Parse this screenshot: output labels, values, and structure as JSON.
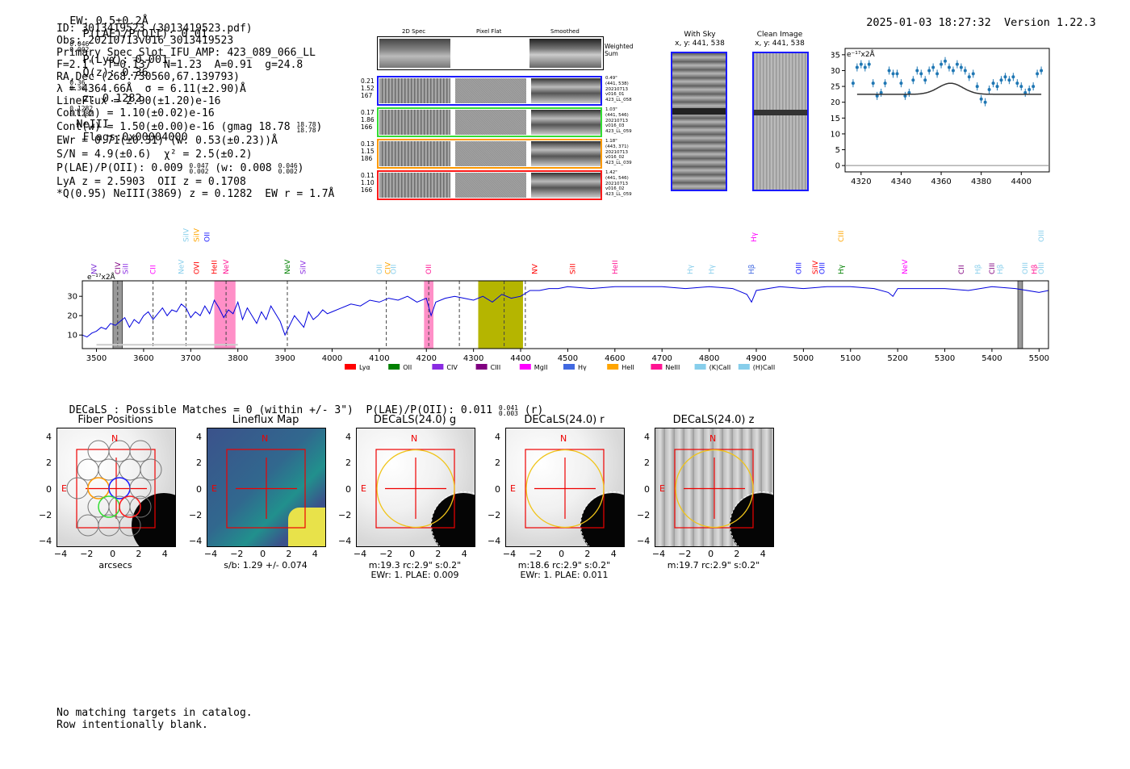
{
  "header": {
    "ew": "EW: 0.5±0.2Å",
    "plae_label": "P(LAE)/P(OII): 0.01",
    "plae_hi": "0.046",
    "plae_lo": "0.002",
    "plya": "P(Lyα): 0.001",
    "qz_label": "Q(z): 0.36",
    "qz_hi": "0.36",
    "qz_lo": "0.36",
    "z_label": "z: 0.1282",
    "z_hi": "0.1282",
    "z_lo": "0.1282",
    "line": "NeIII",
    "flags": "Flags:0x00004000",
    "datetime": "2025-01-03 18:27:32",
    "version": "Version 1.22.3"
  },
  "info": {
    "lines": [
      "ID: 3013419523 (3013419523.pdf)",
      "Obs: 20210713v016_3013419523",
      "Primary Spec_Slot_IFU_AMP: 423_089_066_LL",
      "F=2.1\"  T=0.137  N=1.23  A=0.91  g=24.8",
      "RA,Dec (268.730560,67.139793)",
      "λ = 4364.66Å  σ = 6.11(±2.90)Å",
      "LineFlux = 2.90(±1.20)e-16",
      "Cont(n) = 1.10(±0.02)e-16"
    ],
    "contw": "Cont(w) = 1.50(±0.00)e-16 (gmag 18.78",
    "contw_hi": "18.78",
    "contw_lo": "18.78",
    "ewr": "EWr = 0.71(±0.31) (w: 0.53(±0.23))Å",
    "sn": "S/N = 4.9(±0.6)  χ² = 2.5(±0.2)",
    "plae": "P(LAE)/P(OII): 0.009",
    "plae_hi": "0.047",
    "plae_lo": "0.002",
    "plae_w": "(w: 0.008",
    "plae_w_hi": "0.046",
    "plae_w_lo": "0.002",
    "lya": "LyA z = 2.5903  OII z = 0.1708",
    "q": "*Q(0.95) NeIII(3869) z = 0.1282  EW r = 1.7Å"
  },
  "cutouts": {
    "col_titles": [
      "2D Spec",
      "Pixel Flat",
      "Smoothed"
    ],
    "weighted_sum": "Weighted Sum",
    "rows": [
      {
        "left": [
          "0.21",
          "1.52",
          "167"
        ],
        "right": [
          "0.49\"",
          "(441, 538)",
          "20210713",
          "v016_01",
          "423_LL_058"
        ],
        "color": "#1a1aff"
      },
      {
        "left": [
          "0.17",
          "1.86",
          "166"
        ],
        "right": [
          "1.03\"",
          "(441, 546)",
          "20210713",
          "v016_03",
          "423_LL_059"
        ],
        "color": "#33dd33"
      },
      {
        "left": [
          "0.13",
          "1.15",
          "186"
        ],
        "right": [
          "1.18\"",
          "(443, 371)",
          "20210713",
          "v016_02",
          "423_LL_039"
        ],
        "color": "#ff9900"
      },
      {
        "left": [
          "0.11",
          "1.10",
          "166"
        ],
        "right": [
          "1.42\"",
          "(441, 546)",
          "20210713",
          "v016_02",
          "423_LL_059"
        ],
        "color": "#ff1a1a"
      }
    ]
  },
  "sky_panels": {
    "with_sky_title": "With Sky",
    "with_sky_xy": "x, y: 441, 538",
    "clean_title": "Clean Image",
    "clean_xy": "x, y: 441, 538"
  },
  "chart_data": [
    {
      "type": "scatter",
      "title": "",
      "unit_label": "e⁻¹⁷x2Å",
      "xlim": [
        4312,
        4414
      ],
      "ylim": [
        -2,
        37
      ],
      "xticks": [
        4320,
        4340,
        4360,
        4380,
        4400
      ],
      "yticks": [
        0,
        5,
        10,
        15,
        20,
        25,
        30,
        35
      ],
      "x": [
        4316,
        4318,
        4320,
        4322,
        4324,
        4326,
        4328,
        4330,
        4332,
        4334,
        4336,
        4338,
        4340,
        4342,
        4344,
        4346,
        4348,
        4350,
        4352,
        4354,
        4356,
        4358,
        4360,
        4362,
        4364,
        4366,
        4368,
        4370,
        4372,
        4374,
        4376,
        4378,
        4380,
        4382,
        4384,
        4386,
        4388,
        4390,
        4392,
        4394,
        4396,
        4398,
        4400,
        4402,
        4404,
        4406,
        4408,
        4410
      ],
      "values": [
        26,
        31,
        32,
        31,
        32,
        26,
        22,
        23,
        26,
        30,
        29,
        29,
        26,
        22,
        23,
        27,
        30,
        29,
        27,
        30,
        31,
        29,
        32,
        33,
        31,
        30,
        32,
        31,
        30,
        28,
        29,
        25,
        21,
        20,
        24,
        26,
        25,
        27,
        28,
        27,
        28,
        26,
        25,
        23,
        24,
        25,
        29,
        30
      ],
      "fit": {
        "continuum": 22.5,
        "amplitude": 3.5,
        "center": 4364.66,
        "sigma": 6.11
      }
    },
    {
      "type": "line",
      "title": "",
      "unit_label": "e⁻¹⁷x2Å",
      "xlim": [
        3470,
        5520
      ],
      "ylim": [
        3,
        38
      ],
      "xticks": [
        3500,
        3600,
        3700,
        3800,
        3900,
        4000,
        4100,
        4200,
        4300,
        4400,
        4500,
        4600,
        4700,
        4800,
        4900,
        5000,
        5100,
        5200,
        5300,
        5400,
        5500
      ],
      "yticks": [
        10,
        20,
        30
      ],
      "series": [
        {
          "name": "spectrum",
          "x": [
            3470,
            3480,
            3490,
            3500,
            3510,
            3520,
            3530,
            3540,
            3550,
            3560,
            3570,
            3580,
            3590,
            3600,
            3610,
            3620,
            3630,
            3640,
            3650,
            3660,
            3670,
            3680,
            3690,
            3700,
            3710,
            3720,
            3730,
            3740,
            3750,
            3760,
            3770,
            3780,
            3790,
            3800,
            3810,
            3820,
            3830,
            3840,
            3850,
            3860,
            3870,
            3880,
            3890,
            3900,
            3910,
            3920,
            3930,
            3940,
            3950,
            3960,
            3970,
            3980,
            3990,
            4000,
            4020,
            4040,
            4060,
            4080,
            4100,
            4120,
            4140,
            4160,
            4180,
            4200,
            4210,
            4220,
            4240,
            4260,
            4280,
            4300,
            4320,
            4340,
            4360,
            4380,
            4400,
            4420,
            4440,
            4460,
            4480,
            4500,
            4550,
            4600,
            4650,
            4700,
            4750,
            4800,
            4850,
            4880,
            4890,
            4900,
            4950,
            5000,
            5050,
            5100,
            5150,
            5180,
            5190,
            5200,
            5250,
            5300,
            5350,
            5400,
            5450,
            5500,
            5520
          ],
          "values": [
            10,
            9,
            11,
            12,
            14,
            13,
            16,
            15,
            17,
            19,
            14,
            18,
            16,
            20,
            22,
            18,
            21,
            24,
            20,
            23,
            22,
            26,
            24,
            19,
            22,
            20,
            25,
            21,
            28,
            24,
            19,
            23,
            21,
            27,
            18,
            24,
            20,
            16,
            22,
            18,
            25,
            21,
            17,
            10,
            15,
            20,
            17,
            14,
            22,
            18,
            20,
            23,
            21,
            22,
            24,
            26,
            25,
            28,
            27,
            29,
            28,
            30,
            27,
            29,
            20,
            27,
            29,
            30,
            29,
            28,
            30,
            27,
            31,
            29,
            30,
            33,
            33,
            34,
            34,
            35,
            34,
            35,
            35,
            35,
            34,
            35,
            34,
            31,
            27,
            33,
            35,
            34,
            35,
            35,
            34,
            32,
            30,
            34,
            34,
            34,
            33,
            35,
            34,
            32,
            33
          ]
        },
        {
          "name": "noise",
          "x": [
            3500,
            3600,
            3700,
            3800
          ],
          "values": [
            5,
            5,
            5,
            5
          ]
        }
      ],
      "masked_regions": [
        [
          3535,
          3555
        ],
        [
          4310,
          4405
        ],
        [
          5455,
          5465
        ]
      ],
      "highlight_regions": [
        [
          3750,
          3795
        ],
        [
          4195,
          4215
        ]
      ],
      "dashed_lines": [
        3545,
        3620,
        3690,
        3775,
        3905,
        4115,
        4205,
        4270,
        4365,
        4410
      ],
      "line_labels": [
        {
          "label": "NV",
          "wave": 3495,
          "color": "#7b2dd4",
          "tier": 0
        },
        {
          "label": "CIV",
          "wave": 3545,
          "color": "#800080",
          "tier": 0
        },
        {
          "label": "SiII",
          "wave": 3562,
          "color": "#8a2be2",
          "tier": 0
        },
        {
          "label": "SiIV",
          "wave": 3690,
          "color": "#87ceeb",
          "tier": 2
        },
        {
          "label": "SiIV",
          "wave": 3712,
          "color": "#ffa500",
          "tier": 2
        },
        {
          "label": "OII",
          "wave": 3735,
          "color": "#1a1aff",
          "tier": 2
        },
        {
          "label": "CII",
          "wave": 3620,
          "color": "#ff00ff",
          "tier": 0
        },
        {
          "label": "NeV",
          "wave": 3680,
          "color": "#87ceeb",
          "tier": 0
        },
        {
          "label": "OVI",
          "wave": 3712,
          "color": "#ff0000",
          "tier": 0
        },
        {
          "label": "HeII",
          "wave": 3750,
          "color": "#ff0000",
          "tier": 0
        },
        {
          "label": "NeV",
          "wave": 3775,
          "color": "#ff1493",
          "tier": 0
        },
        {
          "label": "NeV",
          "wave": 3905,
          "color": "#008000",
          "tier": 0
        },
        {
          "label": "SiIV",
          "wave": 3938,
          "color": "#8a2be2",
          "tier": 0
        },
        {
          "label": "OII",
          "wave": 4100,
          "color": "#87ceeb",
          "tier": 0
        },
        {
          "label": "CIV",
          "wave": 4118,
          "color": "#ffa500",
          "tier": 0
        },
        {
          "label": "OII",
          "wave": 4130,
          "color": "#87ceeb",
          "tier": 0
        },
        {
          "label": "OII",
          "wave": 4205,
          "color": "#ff1493",
          "tier": 0
        },
        {
          "label": "NV",
          "wave": 4430,
          "color": "#ff0000",
          "tier": 0
        },
        {
          "label": "SiII",
          "wave": 4510,
          "color": "#ff0000",
          "tier": 0
        },
        {
          "label": "HeII",
          "wave": 4600,
          "color": "#ff1493",
          "tier": 0
        },
        {
          "label": "Hγ",
          "wave": 4760,
          "color": "#87ceeb",
          "tier": 0
        },
        {
          "label": "Hγ",
          "wave": 4805,
          "color": "#87ceeb",
          "tier": 0
        },
        {
          "label": "Hβ",
          "wave": 4890,
          "color": "#4169e1",
          "tier": 0
        },
        {
          "label": "Hγ",
          "wave": 4895,
          "color": "#ff00ff",
          "tier": 2
        },
        {
          "label": "OIII",
          "wave": 4990,
          "color": "#1a1aff",
          "tier": 0
        },
        {
          "label": "SiIV",
          "wave": 5025,
          "color": "#ff0000",
          "tier": 0
        },
        {
          "label": "OIII",
          "wave": 5040,
          "color": "#1a1aff",
          "tier": 0
        },
        {
          "label": "CIII",
          "wave": 5080,
          "color": "#ffa500",
          "tier": 2
        },
        {
          "label": "Hγ",
          "wave": 5080,
          "color": "#008000",
          "tier": 0
        },
        {
          "label": "NeV",
          "wave": 5215,
          "color": "#ff00ff",
          "tier": 0
        },
        {
          "label": "CII",
          "wave": 5335,
          "color": "#800080",
          "tier": 0
        },
        {
          "label": "Hβ",
          "wave": 5370,
          "color": "#87ceeb",
          "tier": 0
        },
        {
          "label": "CIII",
          "wave": 5400,
          "color": "#800080",
          "tier": 0
        },
        {
          "label": "Hβ",
          "wave": 5417,
          "color": "#87ceeb",
          "tier": 0
        },
        {
          "label": "OIII",
          "wave": 5470,
          "color": "#87ceeb",
          "tier": 0
        },
        {
          "label": "Hβ",
          "wave": 5490,
          "color": "#ff1493",
          "tier": 0
        },
        {
          "label": "OIII",
          "wave": 5505,
          "color": "#87ceeb",
          "tier": 0
        },
        {
          "label": "OIII",
          "wave": 5505,
          "color": "#87ceeb",
          "tier": 2
        }
      ],
      "legend": [
        {
          "label": "Lyα",
          "color": "#ff0000"
        },
        {
          "label": "OII",
          "color": "#008000"
        },
        {
          "label": "CIV",
          "color": "#8a2be2"
        },
        {
          "label": "CIII",
          "color": "#800080"
        },
        {
          "label": "MgII",
          "color": "#ff00ff"
        },
        {
          "label": "Hγ",
          "color": "#4169e1"
        },
        {
          "label": "HeII",
          "color": "#ffa500"
        },
        {
          "label": "NeIII",
          "color": "#ff1493"
        },
        {
          "label": "(K)CaII",
          "color": "#87ceeb"
        },
        {
          "label": "(H)CaII",
          "color": "#87ceeb"
        }
      ]
    }
  ],
  "decals": {
    "summary": "DECaLS : Possible Matches = 0 (within +/- 3\")  P(LAE)/P(OII): 0.011",
    "summary_hi": "0.041",
    "summary_lo": "0.003",
    "summary_suffix": "(r)",
    "ticks": [
      "4",
      "2",
      "0",
      "−2",
      "−4"
    ],
    "xticks": [
      "−4",
      "−2",
      "0",
      "2",
      "4"
    ],
    "n_label": "N",
    "e_label": "E",
    "panels": [
      {
        "title": "Fiber Positions",
        "captions": [
          "arcsecs"
        ]
      },
      {
        "title": "Lineflux Map",
        "captions": [
          "s/b: 1.29 +/- 0.074"
        ]
      },
      {
        "title": "DECaLS(24.0) g",
        "captions": [
          "m:19.3 rc:2.9\"  s:0.2\"",
          "EWr: 1. PLAE: 0.009"
        ]
      },
      {
        "title": "DECaLS(24.0) r",
        "captions": [
          "m:18.6 rc:2.9\"  s:0.2\"",
          "EWr: 1. PLAE: 0.011"
        ]
      },
      {
        "title": "DECaLS(24.0) z",
        "captions": [
          "m:19.7 rc:2.9\"  s:0.2\""
        ]
      }
    ]
  },
  "footer": {
    "line1": "No matching targets in catalog.",
    "line2": "Row intentionally blank."
  }
}
